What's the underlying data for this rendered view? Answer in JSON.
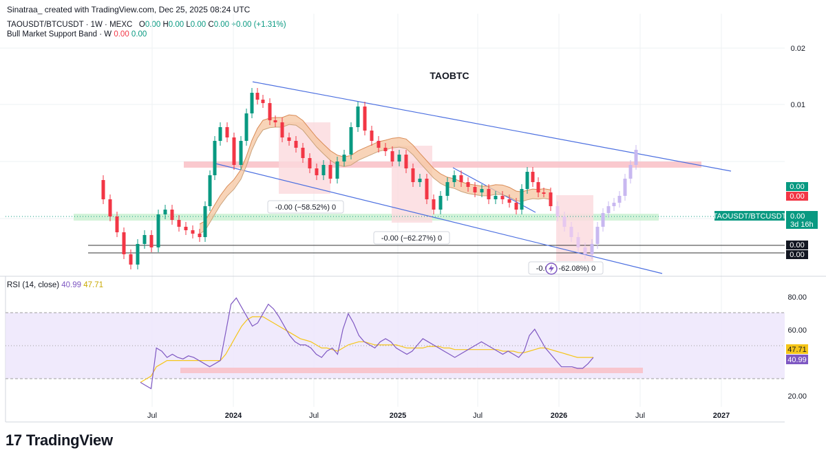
{
  "header": {
    "created_line": "Sinatraa_ created with TradingView.com, Dec 25, 2025 08:24 UTC"
  },
  "legend": {
    "symbol": "TAOUSDT/BTCUSDT · 1W · MEXC",
    "o_label": "O",
    "o_value": "0.00",
    "h_label": "H",
    "h_value": "0.00",
    "l_label": "L",
    "l_value": "0.00",
    "c_label": "C",
    "c_value": "0.00",
    "change": "+0.00 (+1.31%)",
    "bmsb_label": "Bull Market Support Band · W",
    "bmsb_v1": "0.00",
    "bmsb_v2": "0.00"
  },
  "rsi_legend": {
    "label": "RSI (14, close)",
    "v1": "40.99",
    "v2": "47.71"
  },
  "logo": {
    "text": "TradingView",
    "icon": "tradingview-logo-icon"
  },
  "colors": {
    "up": "#089981",
    "down": "#f23645",
    "line": "#4a6ee0",
    "rsi": "#7e57c2",
    "rsi_ma": "#f5c518",
    "band": "#f5c6a0",
    "pink_zone": "#f9c9cf",
    "green_zone": "#c8f0cf"
  },
  "chart_data": [
    {
      "type": "candlestick",
      "title": "TAOBTC",
      "x_ticks": [
        "Jul",
        "2024",
        "Jul",
        "2025",
        "Jul",
        "2026",
        "Jul",
        "2027"
      ],
      "y_ticks": [
        "0.02",
        "0.01"
      ],
      "price_labels": {
        "up_box": "0.00",
        "down_box": "0.00",
        "symbol_tag": "TAOUSDT/BTCUSDT",
        "symbol_value": "0.00",
        "countdown": "3d 16h",
        "level1": "0.00",
        "level2": "0.00"
      },
      "annotations": [
        "-0.00 (−58.52%) 0",
        "-0.00 (−62.27%) 0",
        "-0.0⚡-62.08%) 0"
      ],
      "channel": "descending parallel channel",
      "bull_market_support_band": true,
      "grid": true
    },
    {
      "type": "line",
      "title": "RSI (14, close)",
      "y_ticks": [
        80,
        60,
        20
      ],
      "y_tick_labels": [
        "80.00",
        "60.00",
        "20.00"
      ],
      "ylim": [
        15,
        88
      ],
      "bands": [
        30,
        70
      ],
      "series": [
        {
          "name": "RSI",
          "values": [
            28,
            26,
            24,
            50,
            48,
            44,
            46,
            44,
            43,
            45,
            44,
            42,
            40,
            38,
            40,
            42,
            60,
            78,
            82,
            76,
            70,
            64,
            66,
            72,
            78,
            75,
            70,
            64,
            58,
            54,
            52,
            52,
            50,
            46,
            44,
            48,
            50,
            46,
            62,
            72,
            66,
            58,
            54,
            52,
            50,
            54,
            56,
            54,
            50,
            48,
            46,
            48,
            52,
            56,
            54,
            52,
            50,
            48,
            46,
            44,
            46,
            48,
            50,
            52,
            54,
            52,
            50,
            48,
            46,
            48,
            46,
            44,
            48,
            58,
            62,
            56,
            50,
            46,
            42,
            38,
            38,
            38,
            37,
            37,
            40,
            44
          ]
        },
        {
          "name": "MA",
          "values": [
            28,
            30,
            32,
            38,
            40,
            42,
            42,
            42,
            42,
            42,
            42,
            42,
            42,
            42,
            42,
            42,
            46,
            52,
            58,
            64,
            68,
            70,
            70,
            70,
            68,
            66,
            64,
            62,
            60,
            58,
            56,
            55,
            54,
            52,
            50,
            50,
            49,
            48,
            50,
            52,
            53,
            54,
            54,
            53,
            52,
            52,
            52,
            52,
            52,
            51,
            50,
            50,
            50,
            50,
            51,
            51,
            51,
            50,
            50,
            49,
            49,
            49,
            49,
            49,
            49,
            49,
            49,
            49,
            48,
            48,
            48,
            47,
            47,
            48,
            49,
            50,
            50,
            49,
            48,
            47,
            46,
            45,
            44,
            44,
            44,
            44
          ]
        }
      ],
      "current_labels": [
        "47.71",
        "40.99"
      ]
    }
  ]
}
